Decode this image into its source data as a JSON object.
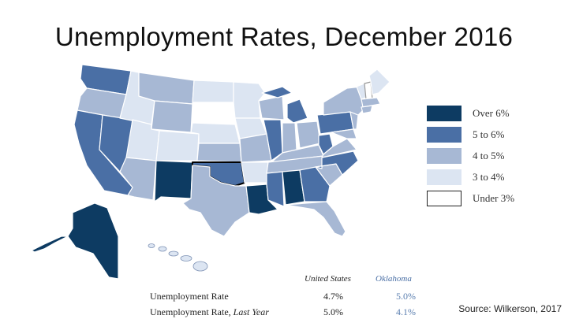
{
  "title": "Unemployment Rates, December 2016",
  "legend": [
    {
      "label": "Over 6%",
      "color": "#0d3b62"
    },
    {
      "label": "5 to 6%",
      "color": "#4a6fa5"
    },
    {
      "label": "4 to 5%",
      "color": "#a7b8d4"
    },
    {
      "label": "3 to 4%",
      "color": "#dce5f2"
    },
    {
      "label": "Under 3%",
      "color": "#ffffff"
    }
  ],
  "table": {
    "col_us": "United States",
    "col_ok": "Oklahoma",
    "rows": [
      {
        "label": "Unemployment Rate",
        "us": "4.7%",
        "ok": "5.0%"
      },
      {
        "label": "Unemployment Rate, Last Year",
        "us": "5.0%",
        "ok": "4.1%"
      }
    ]
  },
  "source": "Source: Wilkerson, 2017"
}
